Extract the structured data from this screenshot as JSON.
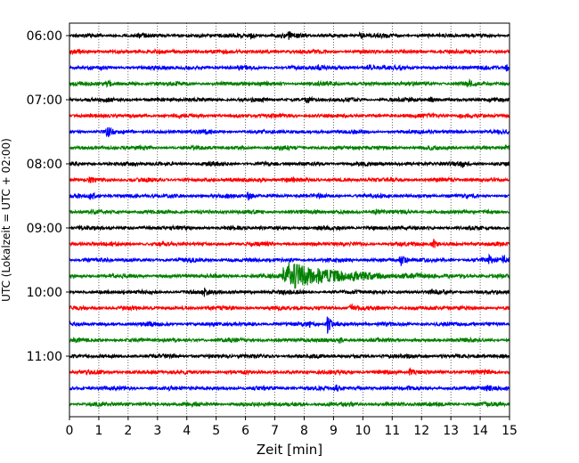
{
  "chart_data": {
    "type": "line",
    "title": "",
    "xlabel": "Zeit  [min]",
    "ylabel": "UTC (Lokalzeit = UTC + 02:00)",
    "xlim": [
      0,
      15
    ],
    "x_ticks": [
      "0",
      "1",
      "2",
      "3",
      "4",
      "5",
      "6",
      "7",
      "8",
      "9",
      "10",
      "11",
      "12",
      "13",
      "14",
      "15"
    ],
    "y_ticks": [
      "06:00",
      "07:00",
      "08:00",
      "09:00",
      "10:00",
      "11:00"
    ],
    "grid": "vertical dotted",
    "trace_interval_minutes": 15,
    "trace_colors": [
      "#000000",
      "#ff0000",
      "#0000ff",
      "#008000"
    ],
    "traces_start": "06:00",
    "trace_count": 24,
    "events": [
      {
        "trace": 0,
        "x": 6.2,
        "amp": 0.4
      },
      {
        "trace": 0,
        "x": 7.5,
        "amp": 0.5
      },
      {
        "trace": 0,
        "x": 9.9,
        "amp": 0.4
      },
      {
        "trace": 2,
        "x": 8.5,
        "amp": 0.5
      },
      {
        "trace": 2,
        "x": 10.2,
        "amp": 0.7
      },
      {
        "trace": 2,
        "x": 14.9,
        "amp": 0.6
      },
      {
        "trace": 3,
        "x": 1.3,
        "amp": 0.4
      },
      {
        "trace": 3,
        "x": 13.6,
        "amp": 0.4
      },
      {
        "trace": 4,
        "x": 8.1,
        "amp": 0.5
      },
      {
        "trace": 4,
        "x": 12.3,
        "amp": 0.4
      },
      {
        "trace": 5,
        "x": 13.3,
        "amp": 0.5
      },
      {
        "trace": 6,
        "x": 1.3,
        "amp": 0.8
      },
      {
        "trace": 7,
        "x": 14.9,
        "amp": 0.5
      },
      {
        "trace": 8,
        "x": 13.4,
        "amp": 0.4
      },
      {
        "trace": 9,
        "x": 0.7,
        "amp": 0.5
      },
      {
        "trace": 9,
        "x": 6.5,
        "amp": 0.4
      },
      {
        "trace": 10,
        "x": 0.7,
        "amp": 0.7
      },
      {
        "trace": 10,
        "x": 6.1,
        "amp": 0.6
      },
      {
        "trace": 11,
        "x": 10.4,
        "amp": 0.5
      },
      {
        "trace": 13,
        "x": 12.4,
        "amp": 0.8
      },
      {
        "trace": 14,
        "x": 11.3,
        "amp": 0.9
      },
      {
        "trace": 14,
        "x": 14.8,
        "amp": 0.8
      },
      {
        "trace": 14,
        "x": 14.3,
        "amp": 0.6
      },
      {
        "trace": 15,
        "x": 7.3,
        "amp": 2.6,
        "decay": 1.5
      },
      {
        "trace": 16,
        "x": 4.6,
        "amp": 0.6
      },
      {
        "trace": 17,
        "x": 9.6,
        "amp": 0.5
      },
      {
        "trace": 18,
        "x": 8.8,
        "amp": 1.7
      },
      {
        "trace": 18,
        "x": 8.2,
        "amp": 0.4
      },
      {
        "trace": 19,
        "x": 9.2,
        "amp": 0.5
      },
      {
        "trace": 22,
        "x": 9.1,
        "amp": 0.5
      },
      {
        "trace": 22,
        "x": 14.2,
        "amp": 0.5
      },
      {
        "trace": 21,
        "x": 11.6,
        "amp": 0.5
      }
    ]
  }
}
